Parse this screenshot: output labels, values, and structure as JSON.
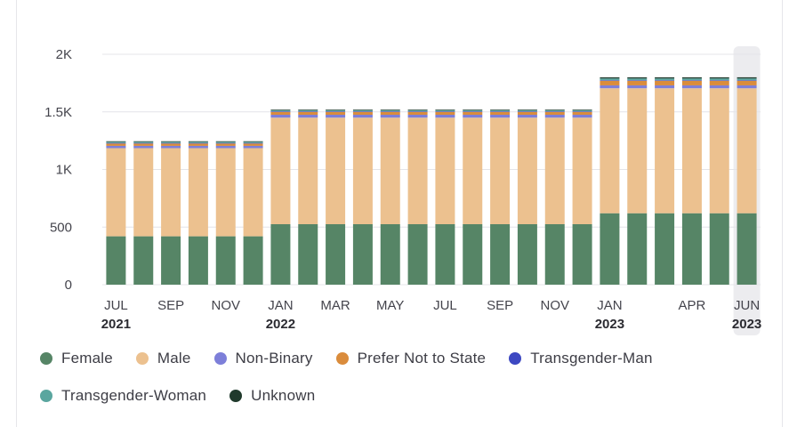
{
  "chart_data": {
    "type": "bar",
    "stacked": true,
    "grid": "horizontal",
    "legend_position": "bottom",
    "ylim": [
      0,
      2000
    ],
    "y_ticks": [
      {
        "value": 0,
        "label": "0"
      },
      {
        "value": 500,
        "label": "500"
      },
      {
        "value": 1000,
        "label": "1K"
      },
      {
        "value": 1500,
        "label": "1.5K"
      },
      {
        "value": 2000,
        "label": "2K"
      }
    ],
    "categories": [
      "Jul 2021",
      "Aug 2021",
      "Sep 2021",
      "Oct 2021",
      "Nov 2021",
      "Dec 2021",
      "Jan 2022",
      "Feb 2022",
      "Mar 2022",
      "Apr 2022",
      "May 2022",
      "Jun 2022",
      "Jul 2022",
      "Aug 2022",
      "Sep 2022",
      "Oct 2022",
      "Nov 2022",
      "Dec 2022",
      "Jan 2023",
      "Feb 2023",
      "Mar 2023",
      "Apr 2023",
      "May 2023",
      "Jun 2023"
    ],
    "x_tick_labels": [
      {
        "index": 0,
        "label": "JUL",
        "year": "2021"
      },
      {
        "index": 2,
        "label": "SEP"
      },
      {
        "index": 4,
        "label": "NOV"
      },
      {
        "index": 6,
        "label": "JAN",
        "year": "2022"
      },
      {
        "index": 8,
        "label": "MAR"
      },
      {
        "index": 10,
        "label": "MAY"
      },
      {
        "index": 12,
        "label": "JUL"
      },
      {
        "index": 14,
        "label": "SEP"
      },
      {
        "index": 16,
        "label": "NOV"
      },
      {
        "index": 18,
        "label": "JAN",
        "year": "2023"
      },
      {
        "index": 21,
        "label": "APR"
      },
      {
        "index": 23,
        "label": "JUN",
        "year": "2023"
      }
    ],
    "highlighted_index": 23,
    "series": [
      {
        "name": "Female",
        "color": "#568566",
        "values": [
          420,
          420,
          420,
          420,
          420,
          420,
          525,
          525,
          525,
          525,
          525,
          525,
          525,
          525,
          525,
          525,
          525,
          525,
          620,
          620,
          620,
          620,
          620,
          620
        ]
      },
      {
        "name": "Male",
        "color": "#ecc18f",
        "values": [
          765,
          765,
          765,
          765,
          765,
          765,
          925,
          925,
          925,
          925,
          925,
          925,
          925,
          925,
          925,
          925,
          925,
          925,
          1085,
          1085,
          1085,
          1085,
          1085,
          1085
        ]
      },
      {
        "name": "Non-Binary",
        "color": "#7d7fd9",
        "values": [
          20,
          20,
          20,
          20,
          20,
          20,
          25,
          25,
          25,
          25,
          25,
          25,
          25,
          25,
          25,
          25,
          25,
          25,
          25,
          25,
          25,
          25,
          25,
          25
        ]
      },
      {
        "name": "Prefer Not to State",
        "color": "#da8c3c",
        "values": [
          20,
          20,
          20,
          20,
          20,
          20,
          25,
          25,
          25,
          25,
          25,
          25,
          25,
          25,
          25,
          25,
          25,
          25,
          40,
          40,
          40,
          40,
          40,
          40
        ]
      },
      {
        "name": "Transgender-Man",
        "color": "#3d48c2",
        "values": [
          5,
          5,
          5,
          5,
          5,
          5,
          5,
          5,
          5,
          5,
          5,
          5,
          5,
          5,
          5,
          5,
          5,
          5,
          5,
          5,
          5,
          5,
          5,
          5
        ]
      },
      {
        "name": "Transgender-Woman",
        "color": "#5aa69f",
        "values": [
          10,
          10,
          10,
          10,
          10,
          10,
          10,
          10,
          10,
          10,
          10,
          10,
          10,
          10,
          10,
          10,
          10,
          10,
          15,
          15,
          15,
          15,
          15,
          15
        ]
      },
      {
        "name": "Unknown",
        "color": "#203a2c",
        "values": [
          5,
          5,
          5,
          5,
          5,
          5,
          5,
          5,
          5,
          5,
          5,
          5,
          5,
          5,
          5,
          5,
          5,
          5,
          10,
          10,
          10,
          10,
          10,
          10
        ]
      }
    ]
  }
}
